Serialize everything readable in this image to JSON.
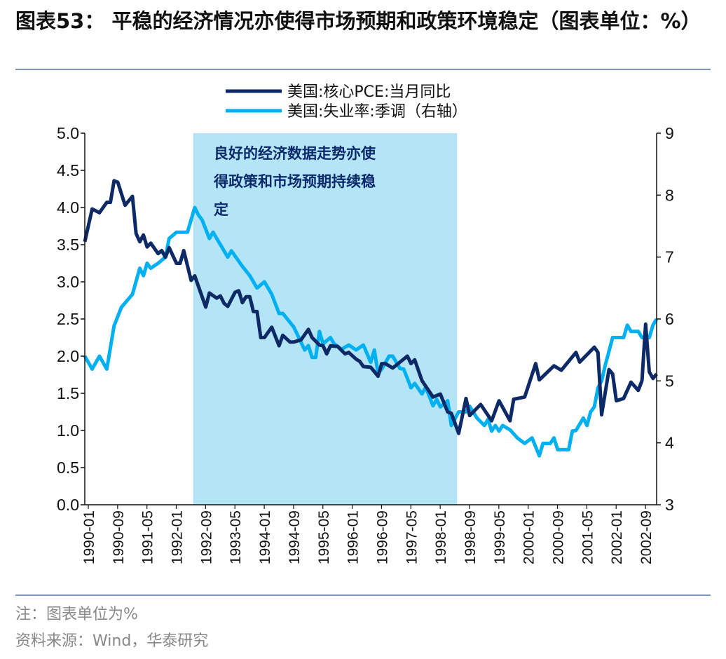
{
  "title": "图表53：  平稳的经济情况亦使得市场预期和政策环境稳定（图表单位：%）",
  "footer": {
    "note": "注：图表单位为%",
    "source": "资料来源：Wind，华泰研究"
  },
  "chart_data": {
    "type": "line",
    "title": "",
    "xlabel": "",
    "ylabel_left": "",
    "ylabel_right": "",
    "ylim_left": [
      0,
      5
    ],
    "ylim_right": [
      3,
      9
    ],
    "yticks_left": [
      "0.0",
      "0.5",
      "1.0",
      "1.5",
      "2.0",
      "2.5",
      "3.0",
      "3.5",
      "4.0",
      "4.5",
      "5.0"
    ],
    "yticks_right": [
      "3",
      "4",
      "5",
      "6",
      "7",
      "8",
      "9"
    ],
    "xticks": [
      "1990-01",
      "1990-09",
      "1991-05",
      "1992-01",
      "1992-09",
      "1993-05",
      "1994-01",
      "1994-09",
      "1995-05",
      "1996-01",
      "1996-09",
      "1997-05",
      "1998-01",
      "1998-09",
      "1999-05",
      "2000-01",
      "2000-09",
      "2001-05",
      "2002-01",
      "2002-09"
    ],
    "grid": false,
    "legend_position": "top-center",
    "shaded_region": {
      "start": "1992-06",
      "end": "1998-06",
      "color": "#b3e5f7",
      "annotation": [
        "良好的经济数据走势亦使",
        "得政策和市场预期持续稳",
        "定"
      ]
    },
    "series": [
      {
        "name": "美国:核心PCE:当月同比",
        "axis": "left",
        "color": "#0d2a66",
        "points": [
          [
            "1990-01",
            3.54
          ],
          [
            "1990-03",
            3.98
          ],
          [
            "1990-05",
            3.93
          ],
          [
            "1990-07",
            4.07
          ],
          [
            "1990-08",
            4.07
          ],
          [
            "1990-09",
            4.36
          ],
          [
            "1990-10",
            4.34
          ],
          [
            "1990-12",
            4.03
          ],
          [
            "1991-02",
            4.15
          ],
          [
            "1991-03",
            3.65
          ],
          [
            "1991-04",
            3.54
          ],
          [
            "1991-05",
            3.63
          ],
          [
            "1991-06",
            3.47
          ],
          [
            "1991-07",
            3.52
          ],
          [
            "1991-09",
            3.38
          ],
          [
            "1991-10",
            3.42
          ],
          [
            "1991-11",
            3.33
          ],
          [
            "1991-12",
            3.46
          ],
          [
            "1992-02",
            3.25
          ],
          [
            "1992-03",
            3.25
          ],
          [
            "1992-04",
            3.42
          ],
          [
            "1992-06",
            3.02
          ],
          [
            "1992-07",
            3.08
          ],
          [
            "1992-10",
            2.66
          ],
          [
            "1992-11",
            2.85
          ],
          [
            "1993-01",
            2.78
          ],
          [
            "1993-02",
            2.81
          ],
          [
            "1993-03",
            2.71
          ],
          [
            "1993-04",
            2.67
          ],
          [
            "1993-06",
            2.86
          ],
          [
            "1993-07",
            2.88
          ],
          [
            "1993-08",
            2.72
          ],
          [
            "1993-09",
            2.8
          ],
          [
            "1993-10",
            2.8
          ],
          [
            "1993-11",
            2.6
          ],
          [
            "1993-12",
            2.6
          ],
          [
            "1994-01",
            2.25
          ],
          [
            "1994-02",
            2.25
          ],
          [
            "1994-04",
            2.39
          ],
          [
            "1994-06",
            2.14
          ],
          [
            "1994-07",
            2.28
          ],
          [
            "1994-09",
            2.19
          ],
          [
            "1994-10",
            2.19
          ],
          [
            "1994-12",
            2.22
          ],
          [
            "1995-02",
            2.36
          ],
          [
            "1995-03",
            2.25
          ],
          [
            "1995-05",
            2.15
          ],
          [
            "1995-06",
            2.14
          ],
          [
            "1995-07",
            2.03
          ],
          [
            "1995-08",
            2.14
          ],
          [
            "1995-10",
            2.13
          ],
          [
            "1995-12",
            2.03
          ],
          [
            "1996-01",
            2.05
          ],
          [
            "1996-03",
            1.96
          ],
          [
            "1996-04",
            1.93
          ],
          [
            "1996-05",
            1.86
          ],
          [
            "1996-07",
            1.85
          ],
          [
            "1996-09",
            1.73
          ],
          [
            "1996-10",
            1.9
          ],
          [
            "1996-11",
            1.9
          ],
          [
            "1997-01",
            1.84
          ],
          [
            "1997-03",
            1.92
          ],
          [
            "1997-05",
            2.0
          ],
          [
            "1997-06",
            1.9
          ],
          [
            "1997-07",
            1.95
          ],
          [
            "1997-09",
            1.67
          ],
          [
            "1997-12",
            1.45
          ],
          [
            "1998-02",
            1.49
          ],
          [
            "1998-04",
            1.25
          ],
          [
            "1998-05",
            1.23
          ],
          [
            "1998-07",
            0.96
          ],
          [
            "1998-09",
            1.43
          ],
          [
            "1998-10",
            1.2
          ],
          [
            "1999-01",
            1.35
          ],
          [
            "1999-04",
            1.13
          ],
          [
            "1999-06",
            1.4
          ],
          [
            "1999-09",
            1.13
          ],
          [
            "1999-10",
            1.42
          ],
          [
            "2000-01",
            1.45
          ],
          [
            "2000-04",
            1.9
          ],
          [
            "2000-05",
            1.68
          ],
          [
            "2000-09",
            1.87
          ],
          [
            "2000-11",
            1.81
          ],
          [
            "2001-03",
            2.05
          ],
          [
            "2001-04",
            1.92
          ],
          [
            "2001-08",
            2.12
          ],
          [
            "2001-09",
            2.05
          ],
          [
            "2001-10",
            1.21
          ],
          [
            "2001-12",
            1.82
          ],
          [
            "2002-01",
            1.76
          ],
          [
            "2002-02",
            1.4
          ],
          [
            "2002-04",
            1.43
          ],
          [
            "2002-06",
            1.65
          ],
          [
            "2002-08",
            1.54
          ],
          [
            "2002-09",
            1.67
          ],
          [
            "2002-10",
            2.43
          ],
          [
            "2002-11",
            1.79
          ],
          [
            "2002-12",
            1.7
          ],
          [
            "2003-01",
            1.76
          ]
        ]
      },
      {
        "name": "美国:失业率:季调（右轴）",
        "axis": "right",
        "color": "#00b0f0",
        "points": [
          [
            "1990-01",
            5.4
          ],
          [
            "1990-03",
            5.19
          ],
          [
            "1990-05",
            5.4
          ],
          [
            "1990-07",
            5.19
          ],
          [
            "1990-09",
            5.89
          ],
          [
            "1990-11",
            6.19
          ],
          [
            "1991-02",
            6.4
          ],
          [
            "1991-04",
            6.82
          ],
          [
            "1991-05",
            6.7
          ],
          [
            "1991-06",
            6.9
          ],
          [
            "1991-07",
            6.82
          ],
          [
            "1991-09",
            6.9
          ],
          [
            "1991-11",
            7.0
          ],
          [
            "1991-12",
            7.3
          ],
          [
            "1992-02",
            7.4
          ],
          [
            "1992-05",
            7.4
          ],
          [
            "1992-07",
            7.8
          ],
          [
            "1992-08",
            7.68
          ],
          [
            "1992-09",
            7.6
          ],
          [
            "1992-11",
            7.3
          ],
          [
            "1992-12",
            7.4
          ],
          [
            "1993-01",
            7.3
          ],
          [
            "1993-04",
            7.0
          ],
          [
            "1993-05",
            7.1
          ],
          [
            "1993-08",
            6.85
          ],
          [
            "1993-10",
            6.7
          ],
          [
            "1993-12",
            6.5
          ],
          [
            "1994-02",
            6.6
          ],
          [
            "1994-04",
            6.4
          ],
          [
            "1994-06",
            6.09
          ],
          [
            "1994-07",
            6.09
          ],
          [
            "1994-10",
            5.87
          ],
          [
            "1995-01",
            5.5
          ],
          [
            "1995-02",
            5.57
          ],
          [
            "1995-03",
            5.38
          ],
          [
            "1995-04",
            5.38
          ],
          [
            "1995-05",
            5.8
          ],
          [
            "1995-06",
            5.6
          ],
          [
            "1995-08",
            5.7
          ],
          [
            "1995-09",
            5.6
          ],
          [
            "1995-11",
            5.51
          ],
          [
            "1996-01",
            5.58
          ],
          [
            "1996-03",
            5.5
          ],
          [
            "1996-05",
            5.58
          ],
          [
            "1996-07",
            5.3
          ],
          [
            "1996-08",
            5.5
          ],
          [
            "1996-09",
            5.12
          ],
          [
            "1996-10",
            5.19
          ],
          [
            "1996-12",
            5.4
          ],
          [
            "1997-01",
            5.4
          ],
          [
            "1997-03",
            5.2
          ],
          [
            "1997-04",
            5.19
          ],
          [
            "1997-06",
            4.89
          ],
          [
            "1997-07",
            4.96
          ],
          [
            "1997-09",
            4.79
          ],
          [
            "1997-10",
            4.9
          ],
          [
            "1997-12",
            4.6
          ],
          [
            "1998-01",
            4.7
          ],
          [
            "1998-02",
            4.58
          ],
          [
            "1998-04",
            4.68
          ],
          [
            "1998-05",
            4.28
          ],
          [
            "1998-07",
            4.5
          ],
          [
            "1998-09",
            4.5
          ],
          [
            "1998-10",
            4.59
          ],
          [
            "1998-12",
            4.4
          ],
          [
            "1999-02",
            4.28
          ],
          [
            "1999-03",
            4.38
          ],
          [
            "1999-04",
            4.19
          ],
          [
            "1999-05",
            4.28
          ],
          [
            "1999-06",
            4.19
          ],
          [
            "1999-07",
            4.28
          ],
          [
            "1999-09",
            4.21
          ],
          [
            "1999-11",
            4.08
          ],
          [
            "2000-01",
            3.99
          ],
          [
            "2000-03",
            4.08
          ],
          [
            "2000-05",
            3.79
          ],
          [
            "2000-06",
            3.99
          ],
          [
            "2000-08",
            3.99
          ],
          [
            "2000-09",
            4.08
          ],
          [
            "2000-10",
            3.89
          ],
          [
            "2001-01",
            3.89
          ],
          [
            "2001-02",
            4.19
          ],
          [
            "2001-03",
            4.2
          ],
          [
            "2001-05",
            4.4
          ],
          [
            "2001-06",
            4.28
          ],
          [
            "2001-07",
            4.5
          ],
          [
            "2001-08",
            4.58
          ],
          [
            "2001-09",
            4.89
          ],
          [
            "2001-10",
            5.0
          ],
          [
            "2001-11",
            5.26
          ],
          [
            "2002-01",
            5.7
          ],
          [
            "2002-04",
            5.7
          ],
          [
            "2002-05",
            5.9
          ],
          [
            "2002-06",
            5.8
          ],
          [
            "2002-08",
            5.8
          ],
          [
            "2002-09",
            5.7
          ],
          [
            "2002-11",
            5.7
          ],
          [
            "2002-12",
            5.9
          ],
          [
            "2003-01",
            6.0
          ]
        ]
      }
    ]
  }
}
